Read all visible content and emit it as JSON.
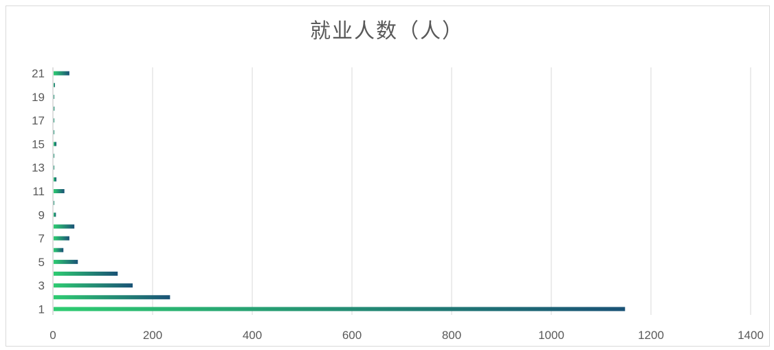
{
  "chart_data": {
    "type": "bar",
    "orientation": "horizontal",
    "title": "就业人数（人）",
    "xlabel": "",
    "ylabel": "",
    "categories": [
      "1",
      "2",
      "3",
      "4",
      "5",
      "6",
      "7",
      "8",
      "9",
      "10",
      "11",
      "12",
      "13",
      "14",
      "15",
      "16",
      "17",
      "18",
      "19",
      "20",
      "21"
    ],
    "category_tick_labels": [
      "1",
      "3",
      "5",
      "7",
      "9",
      "11",
      "13",
      "15",
      "17",
      "19",
      "21"
    ],
    "values": [
      1148,
      235,
      160,
      130,
      50,
      21,
      33,
      43,
      6,
      2,
      23,
      7,
      1,
      2,
      7,
      1,
      2,
      3,
      1,
      4,
      33
    ],
    "xlim": [
      0,
      1400
    ],
    "x_ticks": [
      "0",
      "200",
      "400",
      "600",
      "800",
      "1000",
      "1200",
      "1400"
    ],
    "grid": "vertical",
    "legend": "none",
    "colors": {
      "gradient_start": "#2ecc71",
      "gradient_end": "#1a5276",
      "grid": "#d9d9d9",
      "axis": "#bfbfbf"
    }
  }
}
